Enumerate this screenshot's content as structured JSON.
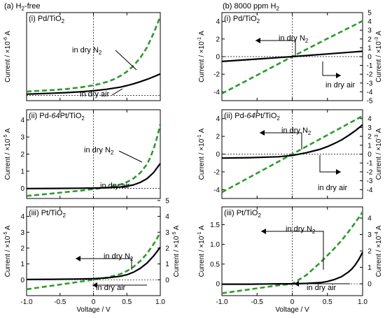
{
  "colors": {
    "n2": "#2e9a2e",
    "air": "#000000",
    "axis": "#000000",
    "ref": "#000000"
  },
  "columns": [
    {
      "title": "(a) H",
      "title_sub": "2",
      "title_rest": "-free",
      "xlabel": "Voltage / V",
      "xticks": [
        "-1.0",
        "-0.5",
        "0",
        "0.5",
        "1.0"
      ],
      "panels": [
        {
          "label": "(i) Pd/TiO",
          "label_sub": "2",
          "label_sup": "",
          "label_tail": "",
          "ylabel_left": "Current / ×10",
          "ylabel_left_exp": "-6",
          "ylabel_left_unit": " A",
          "ylabel_right": "",
          "ylabel_right_exp": "",
          "ylabel_right_unit": "",
          "yticks_left": [],
          "yticks_right": [],
          "n2_text": "in dry N",
          "n2_sub": "2",
          "air_text": "in dry air"
        },
        {
          "label": "(ii) Pd-",
          "label_sub": "",
          "label_sup": "",
          "label_italic": "64",
          "label_tail": "Pt/TiO",
          "label_tail_sub": "2",
          "ylabel_left": "Current / ×10",
          "ylabel_left_exp": "-5",
          "ylabel_left_unit": " A",
          "ylabel_right": "",
          "ylabel_right_exp": "",
          "ylabel_right_unit": "",
          "yticks_left": [
            "0",
            "1",
            "2",
            "3",
            "4"
          ],
          "yticks_right": [],
          "n2_text": "in dry N",
          "n2_sub": "2",
          "air_text": "in dry air"
        },
        {
          "label": "(iii) Pt/TiO",
          "label_sub": "2",
          "label_tail": "",
          "ylabel_left": "Current / ×10",
          "ylabel_left_exp": "-5",
          "ylabel_left_unit": " A",
          "ylabel_right": "Current / ×10",
          "ylabel_right_exp": "-5",
          "ylabel_right_unit": " A",
          "yticks_left": [
            "0",
            "1",
            "2",
            "3",
            "4"
          ],
          "yticks_right": [
            "0",
            "1",
            "2",
            "3",
            "4",
            "5"
          ],
          "n2_text": "in dry N",
          "n2_sub": "2",
          "air_text": "in dry air"
        }
      ]
    },
    {
      "title": "(b) 8000 ppm H",
      "title_sub": "2",
      "title_rest": "",
      "xlabel": "Voltage / V",
      "xticks": [
        "-1.0",
        "-0.5",
        "0",
        "0.5",
        "1.0"
      ],
      "panels": [
        {
          "label": "(i) Pd/TiO",
          "label_sub": "2",
          "label_tail": "",
          "ylabel_left": "Current / ×10",
          "ylabel_left_exp": "-1",
          "ylabel_left_unit": " A",
          "ylabel_right": "Current / ×10",
          "ylabel_right_exp": "-3",
          "ylabel_right_unit": " A",
          "yticks_left": [
            "-4",
            "-2",
            "0",
            "2",
            "4"
          ],
          "yticks_right": [
            "-5",
            "-4",
            "-3",
            "-2",
            "-1",
            "0",
            "1",
            "2",
            "3",
            "4",
            "5"
          ],
          "n2_text": "in dry N",
          "n2_sub": "2",
          "air_text": "in dry air"
        },
        {
          "label": "(ii) Pd-",
          "label_sub": "",
          "label_italic": "64",
          "label_tail": "Pt/TiO",
          "label_tail_sub": "2",
          "ylabel_left": "Current / ×10",
          "ylabel_left_exp": "-1",
          "ylabel_left_unit": " A",
          "ylabel_right": "Current / ×10",
          "ylabel_right_exp": "-3",
          "ylabel_right_unit": " A",
          "yticks_left": [
            "-4",
            "-2",
            "0",
            "2",
            "4"
          ],
          "yticks_right": [
            "-4",
            "-3",
            "-2",
            "-1",
            "0",
            "1",
            "2",
            "3",
            "4"
          ],
          "n2_text": "in dry N",
          "n2_sub": "2",
          "air_text": "in dry air"
        },
        {
          "label": "(iii) Pt/TiO",
          "label_sub": "2",
          "label_tail": "",
          "ylabel_left": "Current / ×10",
          "ylabel_left_exp": "-1",
          "ylabel_left_unit": " A",
          "ylabel_right": "Current / ×10",
          "ylabel_right_exp": "-4",
          "ylabel_right_unit": " A",
          "yticks_left": [
            "0",
            "0.5",
            "1.0",
            "1.5"
          ],
          "yticks_right": [
            "0",
            "1",
            "2",
            "3",
            "4"
          ],
          "n2_text": "in dry N",
          "n2_sub": "2",
          "air_text": "in dry air"
        }
      ]
    }
  ],
  "chart_data": [
    {
      "type": "line",
      "panel": "(a)(i)",
      "xlim": [
        -1.0,
        1.0
      ],
      "ylim": [
        -0.2,
        3.2
      ],
      "series": [
        {
          "name": "in dry N2",
          "style": "dashed",
          "x": [
            -1.0,
            -0.8,
            -0.6,
            -0.4,
            -0.2,
            0,
            0.1,
            0.2,
            0.3,
            0.4,
            0.5,
            0.6,
            0.7,
            0.8,
            0.9,
            1.0
          ],
          "y": [
            0.15,
            0.18,
            0.21,
            0.25,
            0.31,
            0.39,
            0.45,
            0.52,
            0.62,
            0.75,
            0.92,
            1.15,
            1.45,
            1.85,
            2.4,
            3.05
          ]
        },
        {
          "name": "in dry air",
          "style": "solid",
          "x": [
            -1.0,
            -0.8,
            -0.6,
            -0.4,
            -0.2,
            0,
            0.2,
            0.4,
            0.5,
            0.6,
            0.7,
            0.8,
            0.9,
            1.0
          ],
          "y": [
            0.05,
            0.07,
            0.09,
            0.11,
            0.14,
            0.18,
            0.24,
            0.32,
            0.38,
            0.45,
            0.53,
            0.62,
            0.72,
            0.83
          ]
        }
      ]
    },
    {
      "type": "line",
      "panel": "(a)(ii)",
      "xlim": [
        -1.0,
        1.0
      ],
      "ylim": [
        -0.6,
        4.6
      ],
      "series": [
        {
          "name": "in dry N2",
          "style": "dashed",
          "x": [
            -1.0,
            -0.8,
            -0.6,
            -0.4,
            -0.2,
            0,
            0.2,
            0.3,
            0.4,
            0.5,
            0.6,
            0.7,
            0.8,
            0.85,
            0.9,
            0.95,
            1.0
          ],
          "y": [
            -0.45,
            -0.38,
            -0.3,
            -0.22,
            -0.14,
            -0.05,
            0.05,
            0.12,
            0.22,
            0.36,
            0.58,
            0.9,
            1.4,
            1.8,
            2.3,
            2.95,
            3.75
          ]
        },
        {
          "name": "in dry air",
          "style": "solid",
          "x": [
            -1.0,
            -0.6,
            -0.2,
            0,
            0.2,
            0.4,
            0.5,
            0.6,
            0.7,
            0.8,
            0.9,
            1.0
          ],
          "y": [
            -0.02,
            -0.01,
            0,
            0.01,
            0.03,
            0.07,
            0.12,
            0.2,
            0.34,
            0.56,
            0.92,
            1.45
          ]
        }
      ]
    },
    {
      "type": "line",
      "panel": "(a)(iii)",
      "xlim": [
        -1.0,
        1.0
      ],
      "ylim": [
        -1.0,
        4.6
      ],
      "series": [
        {
          "name": "in dry N2",
          "style": "dashed",
          "x": [
            -1.0,
            -0.8,
            -0.6,
            -0.4,
            -0.2,
            0,
            0.2,
            0.4,
            0.5,
            0.6,
            0.7,
            0.8,
            0.9,
            0.95,
            1.0
          ],
          "y": [
            -0.6,
            -0.48,
            -0.36,
            -0.24,
            -0.12,
            0,
            0.14,
            0.36,
            0.55,
            0.82,
            1.18,
            1.65,
            2.25,
            2.6,
            3.0
          ]
        },
        {
          "name": "in dry air",
          "style": "solid",
          "x": [
            -1.0,
            -0.6,
            -0.2,
            0,
            0.2,
            0.4,
            0.5,
            0.6,
            0.7,
            0.8,
            0.9,
            1.0
          ],
          "y": [
            0.02,
            0.03,
            0.05,
            0.07,
            0.12,
            0.22,
            0.32,
            0.48,
            0.72,
            1.05,
            1.5,
            2.05
          ]
        }
      ]
    },
    {
      "type": "line",
      "panel": "(b)(i)",
      "xlim": [
        -1.0,
        1.0
      ],
      "ylim": [
        -5.0,
        5.0
      ],
      "series": [
        {
          "name": "in dry N2",
          "style": "dashed",
          "x": [
            -1.0,
            -0.5,
            0,
            0.5,
            1.0
          ],
          "y": [
            -4.2,
            -2.1,
            0,
            2.05,
            4.05
          ]
        },
        {
          "name": "in dry air",
          "style": "solid",
          "x": [
            -1.0,
            -0.5,
            0,
            0.5,
            1.0
          ],
          "y": [
            -0.55,
            -0.28,
            0,
            0.3,
            0.6
          ]
        }
      ]
    },
    {
      "type": "line",
      "panel": "(b)(ii)",
      "xlim": [
        -1.0,
        1.0
      ],
      "ylim": [
        -5.0,
        5.0
      ],
      "series": [
        {
          "name": "in dry N2",
          "style": "dashed",
          "x": [
            -1.0,
            -0.5,
            0,
            0.5,
            1.0
          ],
          "y": [
            -4.3,
            -2.15,
            0,
            2.15,
            4.3
          ]
        },
        {
          "name": "in dry air",
          "style": "solid",
          "x": [
            -1.0,
            -0.6,
            -0.2,
            0,
            0.2,
            0.4,
            0.5,
            0.6,
            0.7,
            0.8,
            0.9,
            1.0
          ],
          "y": [
            -0.45,
            -0.4,
            -0.3,
            -0.15,
            0.15,
            0.55,
            0.85,
            1.2,
            1.6,
            2.1,
            2.65,
            3.3
          ]
        }
      ]
    },
    {
      "type": "line",
      "panel": "(b)(iii)",
      "xlim": [
        -1.0,
        1.0
      ],
      "ylim": [
        -0.3,
        1.95
      ],
      "series": [
        {
          "name": "in dry N2",
          "style": "dashed",
          "x": [
            -1.0,
            -0.8,
            -0.6,
            -0.4,
            -0.2,
            0,
            0.2,
            0.4,
            0.5,
            0.6,
            0.7,
            0.8,
            0.9,
            1.0
          ],
          "y": [
            -0.24,
            -0.19,
            -0.14,
            -0.09,
            -0.04,
            0,
            0.22,
            0.54,
            0.72,
            0.9,
            1.1,
            1.32,
            1.56,
            1.82
          ]
        },
        {
          "name": "in dry air",
          "style": "solid",
          "x": [
            -1.0,
            -0.6,
            -0.2,
            0,
            0.2,
            0.4,
            0.5,
            0.6,
            0.7,
            0.8,
            0.85,
            0.9,
            0.95,
            1.0
          ],
          "y": [
            -0.01,
            -0.01,
            0,
            0,
            0.01,
            0.03,
            0.06,
            0.11,
            0.18,
            0.3,
            0.38,
            0.49,
            0.63,
            0.8
          ]
        }
      ]
    }
  ]
}
